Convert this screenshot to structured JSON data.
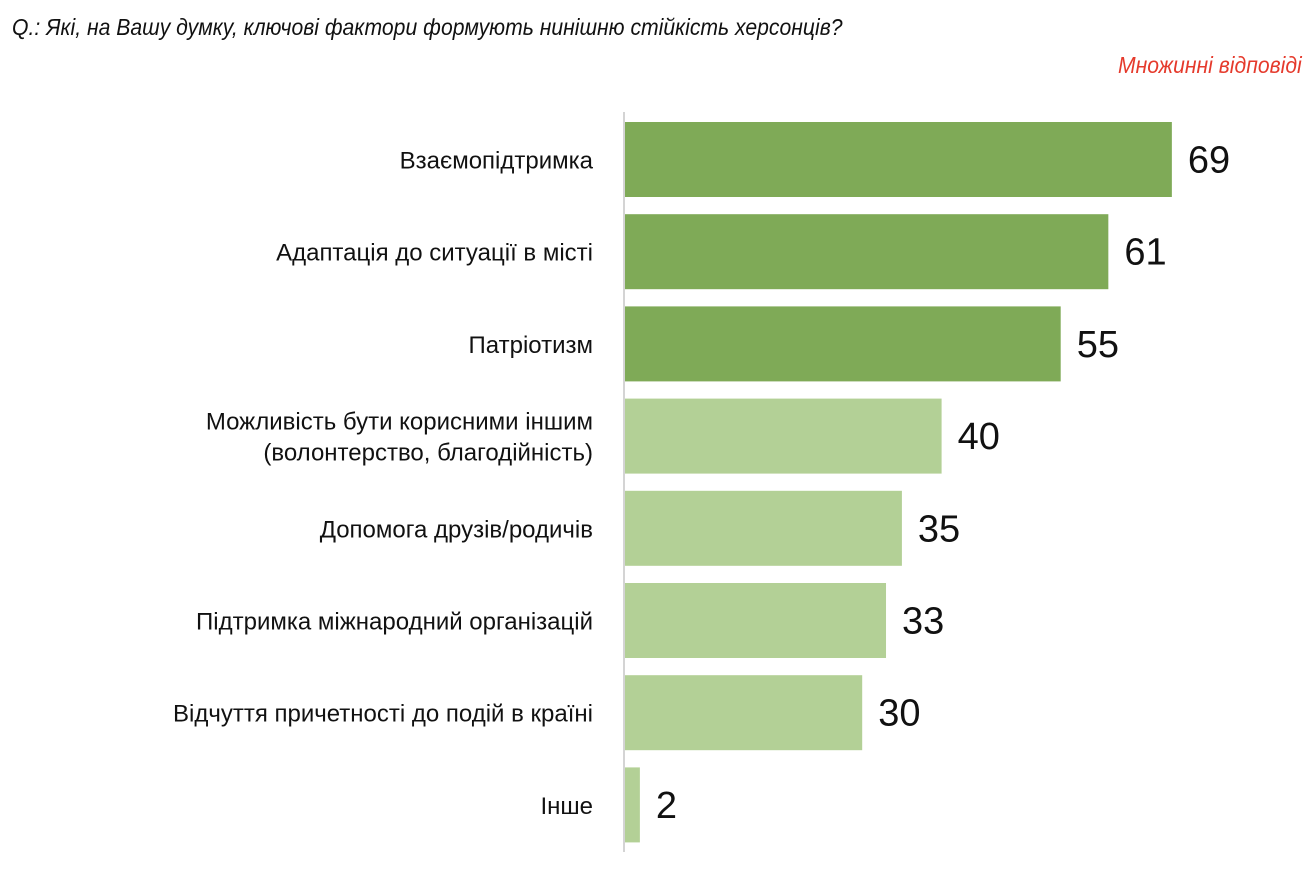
{
  "chart_data": {
    "type": "bar",
    "orientation": "horizontal",
    "title": "Q.: Які, на Вашу думку, ключові фактори формують нинішню стійкість херсонців?",
    "subtitle": "Множинні відповіді",
    "categories": [
      [
        "Взаємопідтримка"
      ],
      [
        "Адаптація до ситуації в місті"
      ],
      [
        "Патріотизм"
      ],
      [
        "Можливість бути корисними іншим",
        "(волонтерство, благодійність)"
      ],
      [
        "Допомога друзів/родичів"
      ],
      [
        "Підтримка міжнародний організацій"
      ],
      [
        "Відчуття причетності до подій в країні"
      ],
      [
        "Інше"
      ]
    ],
    "values": [
      69,
      61,
      55,
      40,
      35,
      33,
      30,
      2
    ],
    "highlight": [
      true,
      true,
      true,
      false,
      false,
      false,
      false,
      false
    ],
    "xlim": [
      0,
      100
    ],
    "grid": false,
    "colors": {
      "highlight": "#7faa57",
      "normal": "#b3d096",
      "axis": "#d4d4d4",
      "subtitle": "#e53a2c"
    }
  }
}
